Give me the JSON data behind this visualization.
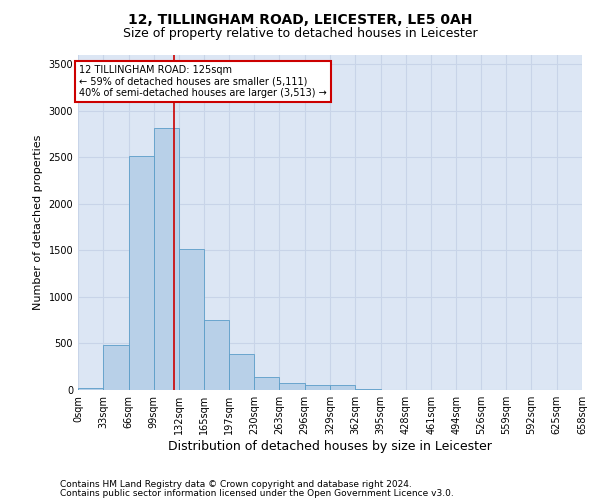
{
  "title": "12, TILLINGHAM ROAD, LEICESTER, LE5 0AH",
  "subtitle": "Size of property relative to detached houses in Leicester",
  "xlabel": "Distribution of detached houses by size in Leicester",
  "ylabel": "Number of detached properties",
  "footnote1": "Contains HM Land Registry data © Crown copyright and database right 2024.",
  "footnote2": "Contains public sector information licensed under the Open Government Licence v3.0.",
  "bin_edges": [
    0,
    33,
    66,
    99,
    132,
    165,
    197,
    230,
    263,
    296,
    329,
    362,
    395,
    428,
    461,
    494,
    526,
    559,
    592,
    625,
    658
  ],
  "bin_labels": [
    "0sqm",
    "33sqm",
    "66sqm",
    "99sqm",
    "132sqm",
    "165sqm",
    "197sqm",
    "230sqm",
    "263sqm",
    "296sqm",
    "329sqm",
    "362sqm",
    "395sqm",
    "428sqm",
    "461sqm",
    "494sqm",
    "526sqm",
    "559sqm",
    "592sqm",
    "625sqm",
    "658sqm"
  ],
  "bar_heights": [
    20,
    480,
    2510,
    2820,
    1510,
    750,
    385,
    140,
    70,
    55,
    55,
    10,
    0,
    0,
    0,
    0,
    0,
    0,
    0,
    0
  ],
  "bar_color": "#b8d0e8",
  "bar_edge_color": "#5b9dc8",
  "property_line_x": 125,
  "property_line_color": "#cc0000",
  "ylim": [
    0,
    3600
  ],
  "yticks": [
    0,
    500,
    1000,
    1500,
    2000,
    2500,
    3000,
    3500
  ],
  "annotation_line1": "12 TILLINGHAM ROAD: 125sqm",
  "annotation_line2": "← 59% of detached houses are smaller (5,111)",
  "annotation_line3": "40% of semi-detached houses are larger (3,513) →",
  "annotation_box_color": "#cc0000",
  "grid_color": "#c8d4e8",
  "bg_color": "#dce6f4",
  "title_fontsize": 10,
  "subtitle_fontsize": 9,
  "ylabel_fontsize": 8,
  "xlabel_fontsize": 9,
  "tick_fontsize": 7,
  "footnote_fontsize": 6.5
}
